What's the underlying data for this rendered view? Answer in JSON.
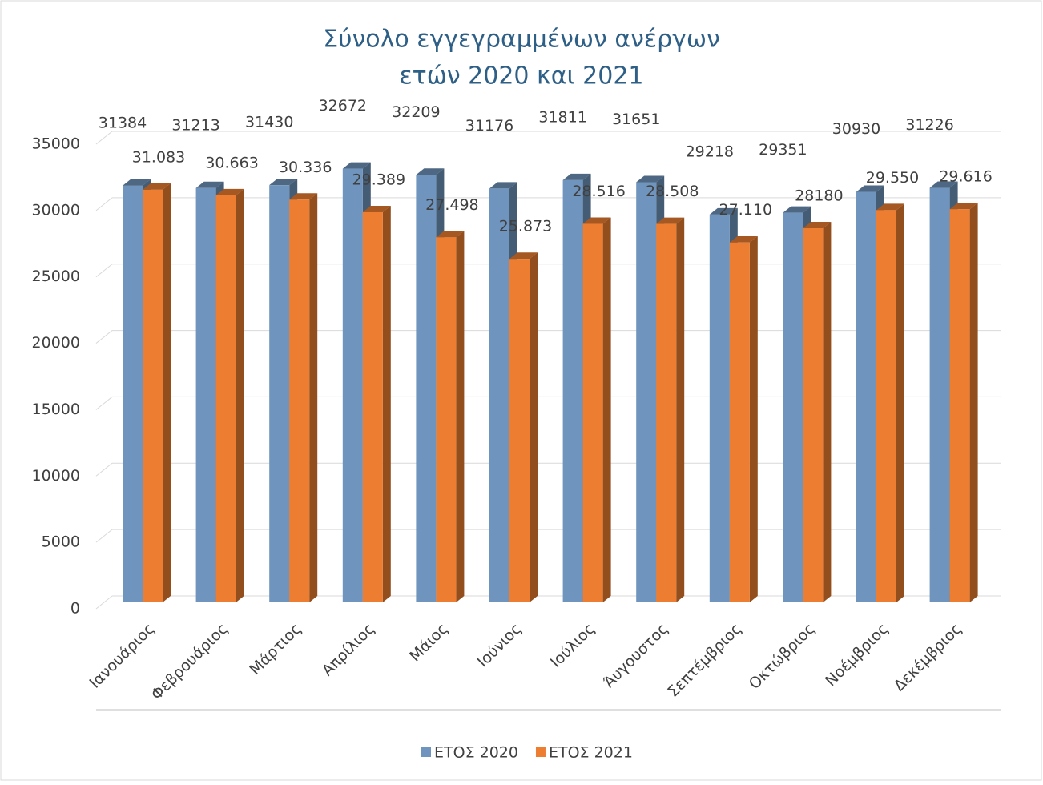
{
  "chart_data": {
    "type": "bar3d",
    "title": [
      "Σύνολο εγγεγραμμένων ανέργων",
      "ετών 2020 και 2021"
    ],
    "categories": [
      "Ιανουάριος",
      "Φεβρουάριος",
      "Μάρτιος",
      "Απρίλιος",
      "Μάιος",
      "Ιούνιος",
      "Ιούλιος",
      "Άυγουστος",
      "Σεπτέμβριος",
      "Οκτώβριος",
      "Νοέμβριος",
      "Δεκέμβριος"
    ],
    "series": [
      {
        "name": "ΕΤΟΣ 2020",
        "color": "#6f94bd",
        "values": [
          31384,
          31213,
          31430,
          32672,
          32209,
          31176,
          31811,
          31651,
          29218,
          29351,
          30930,
          31226
        ]
      },
      {
        "name": "ΕΤΟΣ 2021",
        "color": "#ed7d31",
        "values": [
          31083,
          30663,
          30336,
          29389,
          27498,
          25873,
          28516,
          28508,
          27110,
          28180,
          29550,
          29616
        ],
        "value_labels": [
          "31.083",
          "30.663",
          "30.336",
          "29.389",
          "27.498",
          "25.873",
          "28.516",
          "28.508",
          "27.110",
          "28180",
          "29.550",
          "29.616"
        ]
      }
    ],
    "ylim": [
      0,
      35000
    ],
    "yticks": [
      0,
      5000,
      10000,
      15000,
      20000,
      25000,
      30000,
      35000
    ],
    "grid": true,
    "legend": "bottom"
  }
}
